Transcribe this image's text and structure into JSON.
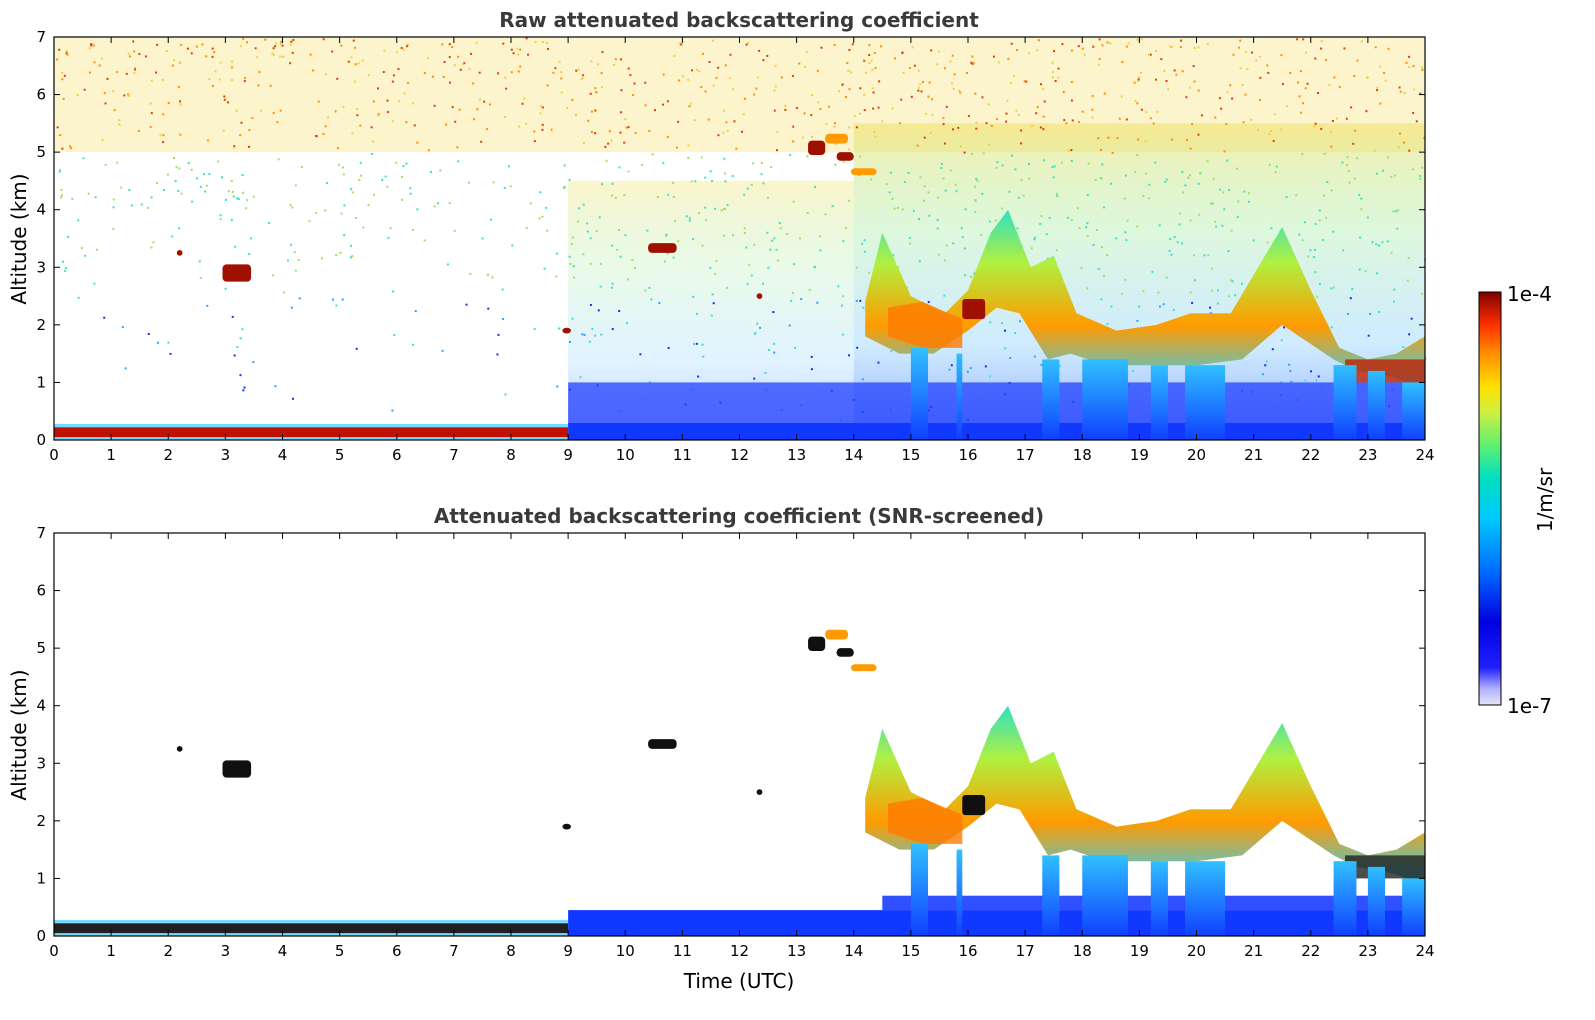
{
  "chart_data": [
    {
      "type": "heatmap",
      "title": "Raw attenuated backscattering coefficient",
      "xlabel": "",
      "ylabel": "Altitude (km)",
      "xlim": [
        0,
        24
      ],
      "ylim": [
        0,
        7
      ],
      "x_ticks": [
        "0",
        "1",
        "2",
        "3",
        "4",
        "5",
        "6",
        "7",
        "8",
        "9",
        "10",
        "11",
        "12",
        "13",
        "14",
        "15",
        "16",
        "17",
        "18",
        "19",
        "20",
        "21",
        "22",
        "23",
        "24"
      ],
      "y_ticks": [
        "0",
        "1",
        "2",
        "3",
        "4",
        "5",
        "6",
        "7"
      ],
      "features": [
        {
          "name": "aerosol-layer",
          "t0": 0,
          "t1": 9,
          "z0": 0.05,
          "z1": 0.25,
          "level": "high"
        },
        {
          "name": "cloud-3km",
          "t0": 2.9,
          "t1": 3.5,
          "z0": 2.7,
          "z1": 3.05,
          "level": "high"
        },
        {
          "name": "cloud-10.5",
          "t0": 10.4,
          "t1": 10.9,
          "z0": 3.25,
          "z1": 3.4,
          "level": "high"
        },
        {
          "name": "cloud-13.5",
          "t0": 13.2,
          "t1": 14.3,
          "z0": 4.6,
          "z1": 5.3,
          "level": "high"
        },
        {
          "name": "cloud-system",
          "t0": 14.2,
          "t1": 24,
          "z0": 1.0,
          "z1": 4.0,
          "level": "medium-high"
        }
      ]
    },
    {
      "type": "heatmap",
      "title": "Attenuated backscattering coefficient (SNR-screened)",
      "xlabel": "Time (UTC)",
      "ylabel": "Altitude (km)",
      "xlim": [
        0,
        24
      ],
      "ylim": [
        0,
        7
      ],
      "x_ticks": [
        "0",
        "1",
        "2",
        "3",
        "4",
        "5",
        "6",
        "7",
        "8",
        "9",
        "10",
        "11",
        "12",
        "13",
        "14",
        "15",
        "16",
        "17",
        "18",
        "19",
        "20",
        "21",
        "22",
        "23",
        "24"
      ],
      "y_ticks": [
        "0",
        "1",
        "2",
        "3",
        "4",
        "5",
        "6",
        "7"
      ]
    }
  ],
  "colorbar": {
    "label": "1/m/sr",
    "max_label": "1e-4",
    "min_label": "1e-7",
    "scale": "log",
    "colors": [
      "#e6e6fa",
      "#b0b0ff",
      "#2020ff",
      "#0000e0",
      "#0060ff",
      "#00b0ff",
      "#00e0d0",
      "#40f080",
      "#c0f040",
      "#ffe000",
      "#ff9000",
      "#ff3000",
      "#d00000",
      "#800000"
    ]
  }
}
